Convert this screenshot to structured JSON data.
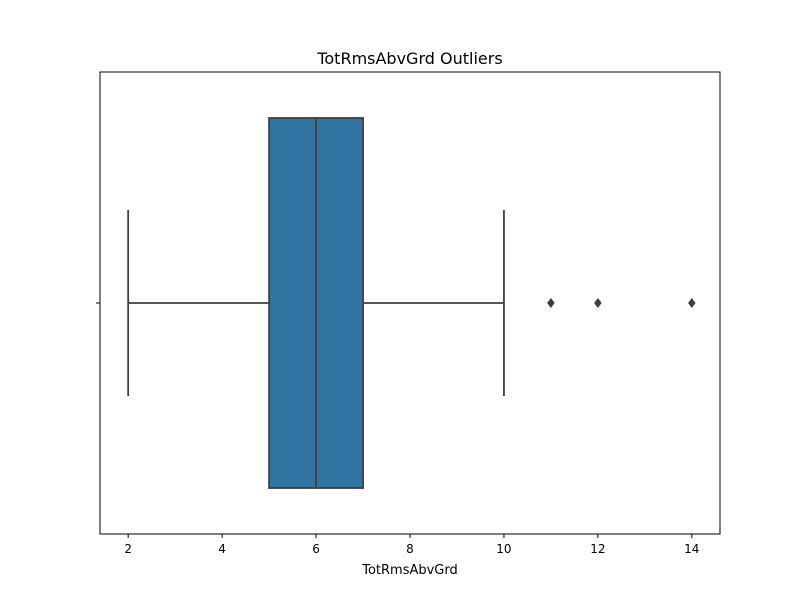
{
  "chart_data": {
    "type": "box",
    "title": "TotRmsAbvGrd Outliers",
    "xlabel": "TotRmsAbvGrd",
    "ylabel": "",
    "orientation": "horizontal",
    "xlim": [
      1.4,
      14.6
    ],
    "xticks": [
      2,
      4,
      6,
      8,
      10,
      12,
      14
    ],
    "xtick_labels": [
      "2",
      "4",
      "6",
      "8",
      "10",
      "12",
      "14"
    ],
    "grid": false,
    "box": {
      "whisker_low": 2,
      "q1": 5,
      "median": 6,
      "q3": 7,
      "whisker_high": 10,
      "outliers": [
        11,
        12,
        14
      ]
    },
    "colors": {
      "box_fill": "#3274a1",
      "line": "#3f3f3f",
      "axis": "#000000"
    }
  }
}
